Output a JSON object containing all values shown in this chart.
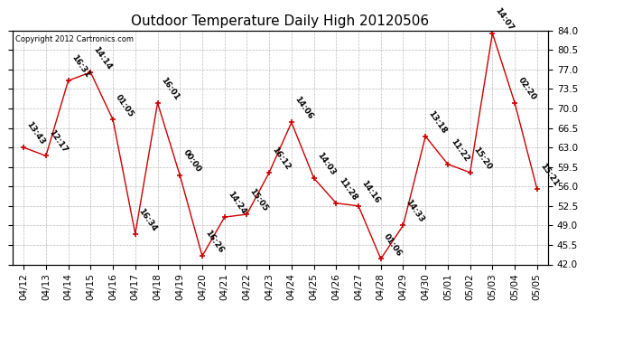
{
  "title": "Outdoor Temperature Daily High 20120506",
  "copyright": "Copyright 2012 Cartronics.com",
  "dates": [
    "04/12",
    "04/13",
    "04/14",
    "04/15",
    "04/16",
    "04/17",
    "04/18",
    "04/19",
    "04/20",
    "04/21",
    "04/22",
    "04/23",
    "04/24",
    "04/25",
    "04/26",
    "04/27",
    "04/28",
    "04/29",
    "04/30",
    "05/01",
    "05/02",
    "05/03",
    "05/04",
    "05/05"
  ],
  "values": [
    63.0,
    61.5,
    75.0,
    76.5,
    68.0,
    47.5,
    71.0,
    58.0,
    43.5,
    50.5,
    51.0,
    58.5,
    67.5,
    57.5,
    53.0,
    52.5,
    43.0,
    49.0,
    65.0,
    60.0,
    58.5,
    83.5,
    71.0,
    55.5
  ],
  "time_labels": [
    "13:43",
    "12:17",
    "16:31",
    "14:14",
    "01:05",
    "16:34",
    "16:01",
    "00:00",
    "16:26",
    "14:24",
    "15:05",
    "16:12",
    "14:06",
    "14:03",
    "11:28",
    "14:16",
    "01:06",
    "14:33",
    "13:18",
    "11:22",
    "15:20",
    "14:07",
    "02:20",
    "15:21"
  ],
  "ylim": [
    42.0,
    84.0
  ],
  "yticks": [
    42.0,
    45.5,
    49.0,
    52.5,
    56.0,
    59.5,
    63.0,
    66.5,
    70.0,
    73.5,
    77.0,
    80.5,
    84.0
  ],
  "line_color": "#cc0000",
  "marker_color": "#cc0000",
  "bg_color": "#ffffff",
  "grid_color": "#bbbbbb",
  "title_fontsize": 11,
  "tick_fontsize": 7.5,
  "annot_fontsize": 6.5
}
